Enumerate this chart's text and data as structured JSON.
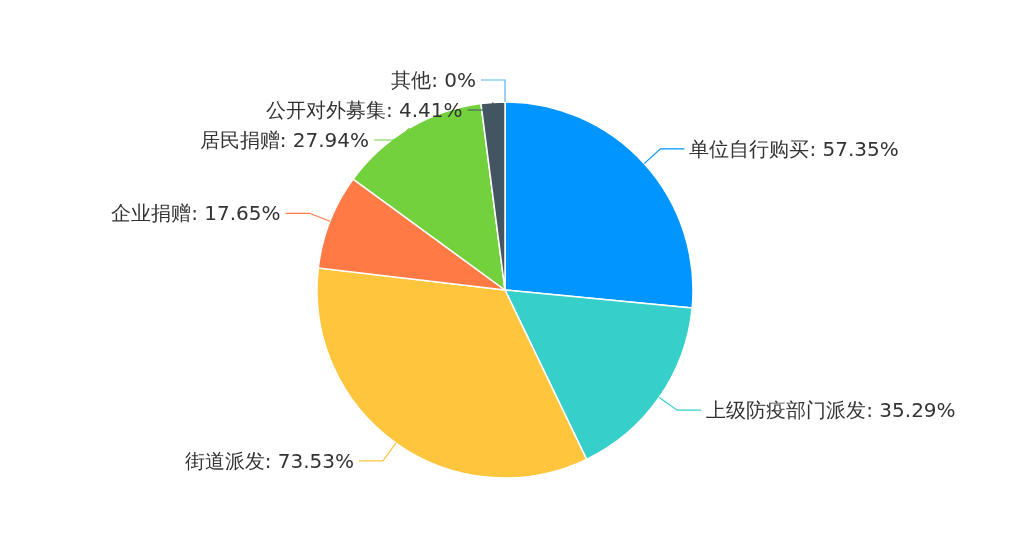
{
  "chart_data": {
    "type": "pie",
    "categories": [
      "单位自行购买",
      "上级防疫部门派发",
      "街道派发",
      "企业捐赠",
      "居民捐赠",
      "公开对外募集",
      "其他"
    ],
    "values": [
      57.35,
      35.29,
      73.53,
      17.65,
      27.94,
      4.41,
      0
    ],
    "value_labels": [
      "57.35%",
      "35.29%",
      "73.53%",
      "17.65%",
      "27.94%",
      "4.41%",
      "0%"
    ],
    "colors": [
      "#0095ff",
      "#36cfc9",
      "#ffc53d",
      "#ff7a45",
      "#73d13d",
      "#435560",
      "#5ab1ef"
    ]
  }
}
